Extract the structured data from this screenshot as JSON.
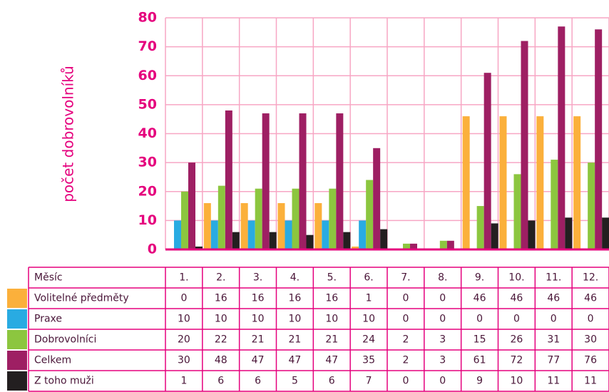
{
  "chart_data": {
    "type": "bar",
    "y_label": "počet dobrovolníků",
    "category_label": "Měsíc",
    "categories": [
      "1.",
      "2.",
      "3.",
      "4.",
      "5.",
      "6.",
      "7.",
      "8.",
      "9.",
      "10.",
      "11.",
      "12."
    ],
    "series": [
      {
        "name": "Volitelné předměty",
        "color": "#fbb03b",
        "values": [
          0,
          16,
          16,
          16,
          16,
          1,
          0,
          0,
          46,
          46,
          46,
          46
        ]
      },
      {
        "name": "Praxe",
        "color": "#29abe2",
        "values": [
          10,
          10,
          10,
          10,
          10,
          10,
          0,
          0,
          0,
          0,
          0,
          0
        ]
      },
      {
        "name": "Dobrovolníci",
        "color": "#8cc63f",
        "values": [
          20,
          22,
          21,
          21,
          21,
          24,
          2,
          3,
          15,
          26,
          31,
          30
        ]
      },
      {
        "name": "Celkem",
        "color": "#9e1f63",
        "values": [
          30,
          48,
          47,
          47,
          47,
          35,
          2,
          3,
          61,
          72,
          77,
          76
        ]
      },
      {
        "name": "Z toho muži",
        "color": "#231f20",
        "values": [
          1,
          6,
          6,
          5,
          6,
          7,
          0,
          0,
          9,
          10,
          11,
          11
        ]
      }
    ],
    "ylim": [
      0,
      80
    ],
    "yticks": [
      0,
      10,
      20,
      30,
      40,
      50,
      60,
      70,
      80
    ],
    "grid": true
  }
}
